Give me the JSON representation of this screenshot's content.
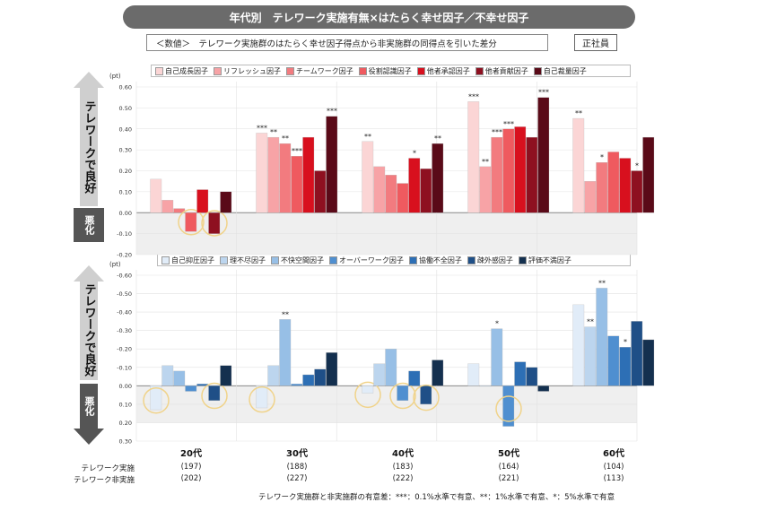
{
  "header": {
    "title": "年代別　テレワーク実施有無×はたらく幸せ因子／不幸せ因子",
    "note": "＜数値＞　テレワーク実施群のはたらく幸せ因子得点から非実施群の同得点を引いた差分",
    "badge": "正社員"
  },
  "side": {
    "good": "テレワークで良好",
    "bad": "悪化"
  },
  "rows": {
    "telework": "テレワーク実施",
    "non_telework": "テレワーク非実施"
  },
  "groups": [
    "20代",
    "30代",
    "40代",
    "50代",
    "60代"
  ],
  "counts": {
    "telework": [
      "(197)",
      "(188)",
      "(183)",
      "(164)",
      "(104)"
    ],
    "non_telework": [
      "(202)",
      "(227)",
      "(222)",
      "(221)",
      "(113)"
    ]
  },
  "footnote": "テレワーク実施群と非実施群の有意差：***：0.1%水準で有意、**：1%水準で有意、*：5%水準で有意",
  "chart_data": [
    {
      "type": "bar",
      "unit": "(pt)",
      "ylim": [
        -0.2,
        0.6
      ],
      "ticks": [
        "0.60",
        "0.50",
        "0.40",
        "0.30",
        "0.20",
        "0.10",
        "0.00",
        "-0.10",
        "-0.20"
      ],
      "categories": [
        "20代",
        "30代",
        "40代",
        "50代",
        "60代"
      ],
      "series": [
        {
          "name": "自己成長因子",
          "color": "#fbd5d5",
          "values": [
            0.16,
            0.38,
            0.34,
            0.53,
            0.45
          ],
          "sig": [
            "",
            "***",
            "**",
            "***",
            "**"
          ]
        },
        {
          "name": "リフレッシュ因子",
          "color": "#f7a3a6",
          "values": [
            0.06,
            0.36,
            0.22,
            0.22,
            0.15
          ],
          "sig": [
            "",
            "**",
            "",
            "**",
            ""
          ]
        },
        {
          "name": "チームワーク因子",
          "color": "#f27b7f",
          "values": [
            0.02,
            0.33,
            0.18,
            0.36,
            0.24
          ],
          "sig": [
            "",
            "**",
            "",
            "***",
            "*"
          ]
        },
        {
          "name": "役割認識因子",
          "color": "#ef5a5f",
          "values": [
            -0.09,
            0.27,
            0.14,
            0.4,
            0.29
          ],
          "sig": [
            "",
            "***",
            "",
            "***",
            ""
          ]
        },
        {
          "name": "他者承認因子",
          "color": "#d8101e",
          "values": [
            0.11,
            0.36,
            0.26,
            0.41,
            0.26
          ],
          "sig": [
            "",
            "",
            "*",
            "",
            ""
          ]
        },
        {
          "name": "他者貢献因子",
          "color": "#8e1020",
          "values": [
            -0.1,
            0.2,
            0.21,
            0.36,
            0.2
          ],
          "sig": [
            "",
            "",
            "",
            "",
            "*"
          ]
        },
        {
          "name": "自己裁量因子",
          "color": "#5a0a18",
          "values": [
            0.1,
            0.46,
            0.33,
            0.55,
            0.36
          ],
          "sig": [
            "",
            "***",
            "**",
            "***",
            ""
          ]
        }
      ]
    },
    {
      "type": "bar",
      "unit": "(pt)",
      "ylim": [
        -0.6,
        0.3
      ],
      "inverted": true,
      "ticks": [
        "-0.60",
        "-0.50",
        "-0.40",
        "-0.30",
        "-0.20",
        "-0.10",
        "0.00",
        "0.10",
        "0.20",
        "0.30"
      ],
      "categories": [
        "20代",
        "30代",
        "40代",
        "50代",
        "60代"
      ],
      "series": [
        {
          "name": "自己抑圧因子",
          "color": "#e1ecf8",
          "values": [
            0.13,
            0.12,
            0.04,
            -0.12,
            -0.44
          ],
          "sig": [
            "",
            "",
            "",
            "",
            ""
          ]
        },
        {
          "name": "理不尽因子",
          "color": "#bcd5ee",
          "values": [
            -0.11,
            -0.11,
            -0.12,
            0.0,
            -0.32
          ],
          "sig": [
            "",
            "",
            "",
            "",
            "**"
          ]
        },
        {
          "name": "不快空間因子",
          "color": "#97bfe6",
          "values": [
            -0.08,
            -0.36,
            -0.2,
            -0.31,
            -0.53
          ],
          "sig": [
            "",
            "**",
            "",
            "*",
            "**"
          ]
        },
        {
          "name": "オーバーワーク因子",
          "color": "#4f8fd0",
          "values": [
            0.03,
            -0.01,
            0.08,
            0.22,
            -0.27
          ],
          "sig": [
            "",
            "",
            "",
            "",
            ""
          ]
        },
        {
          "name": "協働不全因子",
          "color": "#2d6fb5",
          "values": [
            -0.01,
            -0.06,
            -0.08,
            -0.13,
            -0.21
          ],
          "sig": [
            "",
            "",
            "",
            "",
            "*"
          ]
        },
        {
          "name": "疎外感因子",
          "color": "#1f4f87",
          "values": [
            0.08,
            -0.09,
            0.1,
            -0.1,
            -0.35
          ],
          "sig": [
            "",
            "",
            "",
            "",
            ""
          ]
        },
        {
          "name": "評価不満因子",
          "color": "#14304f",
          "values": [
            -0.11,
            -0.18,
            -0.14,
            0.03,
            -0.25
          ],
          "sig": [
            "",
            "",
            "",
            "",
            ""
          ]
        }
      ]
    }
  ]
}
